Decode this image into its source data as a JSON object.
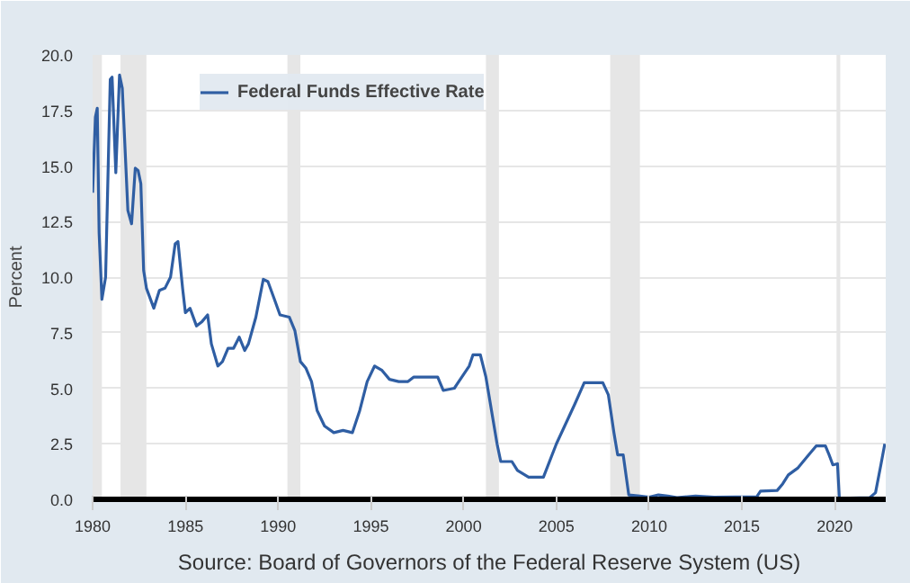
{
  "chart_data": {
    "type": "line",
    "ylabel": "Percent",
    "annotations": [
      "Source: Board of Governors of the Federal Reserve System (US)"
    ],
    "xlim": [
      1980,
      2022.75
    ],
    "xticks": [
      1980,
      1985,
      1990,
      1995,
      2000,
      2005,
      2010,
      2015,
      2020
    ],
    "ylim": [
      0,
      20
    ],
    "yticks": [
      {
        "value": 0,
        "label": "0.0"
      },
      {
        "value": 2.5,
        "label": "2.5"
      },
      {
        "value": 5,
        "label": "5.0"
      },
      {
        "value": 7.5,
        "label": "7.5"
      },
      {
        "value": 10,
        "label": "10.0"
      },
      {
        "value": 12.5,
        "label": "12.5"
      },
      {
        "value": 15,
        "label": "15.0"
      },
      {
        "value": 17.5,
        "label": "17.5"
      },
      {
        "value": 20,
        "label": "20.0"
      }
    ],
    "grid": "y",
    "legend": "top",
    "marker": "none",
    "line_style": "solid",
    "bands": [
      {
        "axis": "x",
        "from": 1980.0,
        "to": 1980.5,
        "color": "#e6e6e6"
      },
      {
        "axis": "x",
        "from": 1981.5,
        "to": 1982.9,
        "color": "#e6e6e6"
      },
      {
        "axis": "x",
        "from": 1990.5,
        "to": 1991.2,
        "color": "#e6e6e6"
      },
      {
        "axis": "x",
        "from": 2001.2,
        "to": 2001.9,
        "color": "#e6e6e6"
      },
      {
        "axis": "x",
        "from": 2007.9,
        "to": 2009.5,
        "color": "#e6e6e6"
      },
      {
        "axis": "x",
        "from": 2020.1,
        "to": 2020.3,
        "color": "#e6e6e6"
      }
    ],
    "series": [
      {
        "name": "Federal Funds Effective Rate",
        "color": "#2f5ea3",
        "x": [
          1980.0,
          1980.15,
          1980.25,
          1980.35,
          1980.5,
          1980.7,
          1980.95,
          1981.05,
          1981.25,
          1981.45,
          1981.6,
          1981.9,
          1982.1,
          1982.3,
          1982.45,
          1982.6,
          1982.75,
          1982.9,
          1983.3,
          1983.6,
          1983.9,
          1984.2,
          1984.45,
          1984.6,
          1984.85,
          1985.0,
          1985.25,
          1985.6,
          1985.9,
          1986.2,
          1986.4,
          1986.75,
          1987.0,
          1987.3,
          1987.6,
          1987.9,
          1988.2,
          1988.4,
          1988.8,
          1989.2,
          1989.45,
          1989.8,
          1990.1,
          1990.6,
          1990.9,
          1991.2,
          1991.5,
          1991.8,
          1992.1,
          1992.5,
          1993.0,
          1993.5,
          1994.0,
          1994.4,
          1994.8,
          1995.2,
          1995.6,
          1996.0,
          1996.5,
          1997.0,
          1997.3,
          1998.0,
          1998.6,
          1998.9,
          1999.5,
          1999.9,
          2000.3,
          2000.5,
          2000.9,
          2001.2,
          2001.5,
          2001.8,
          2002.0,
          2002.6,
          2002.9,
          2003.5,
          2004.3,
          2005.0,
          2006.0,
          2006.5,
          2007.5,
          2007.8,
          2008.1,
          2008.3,
          2008.6,
          2008.9,
          2009.5,
          2010.0,
          2010.5,
          2011.0,
          2011.5,
          2012.5,
          2013.5,
          2015.8,
          2016.0,
          2016.9,
          2017.2,
          2017.5,
          2018.0,
          2018.5,
          2019.0,
          2019.5,
          2019.7,
          2019.9,
          2020.15,
          2020.25,
          2021.9,
          2022.2,
          2022.5,
          2022.7
        ],
        "values": [
          13.8,
          17.2,
          17.6,
          12,
          9.0,
          10.0,
          18.9,
          19.0,
          14.7,
          19.1,
          18.5,
          13,
          12.4,
          14.9,
          14.8,
          14.2,
          10.3,
          9.5,
          8.6,
          9.4,
          9.5,
          10,
          11.5,
          11.6,
          9.5,
          8.4,
          8.6,
          7.8,
          8.0,
          8.3,
          7.0,
          6.0,
          6.2,
          6.8,
          6.8,
          7.3,
          6.7,
          7.0,
          8.2,
          9.9,
          9.8,
          9.0,
          8.3,
          8.2,
          7.6,
          6.2,
          5.9,
          5.3,
          4.0,
          3.3,
          3.0,
          3.1,
          3.0,
          4.0,
          5.3,
          6.0,
          5.8,
          5.4,
          5.3,
          5.3,
          5.5,
          5.5,
          5.5,
          4.9,
          5.0,
          5.5,
          6.0,
          6.5,
          6.5,
          5.5,
          4.0,
          2.5,
          1.7,
          1.7,
          1.3,
          1.0,
          1.0,
          2.5,
          4.3,
          5.25,
          5.25,
          4.7,
          3.0,
          2.0,
          2.0,
          0.2,
          0.15,
          0.1,
          0.2,
          0.15,
          0.08,
          0.15,
          0.1,
          0.12,
          0.37,
          0.4,
          0.7,
          1.1,
          1.4,
          1.9,
          2.4,
          2.4,
          2.0,
          1.55,
          1.6,
          0.05,
          0.08,
          0.3,
          1.6,
          2.5
        ]
      }
    ]
  }
}
